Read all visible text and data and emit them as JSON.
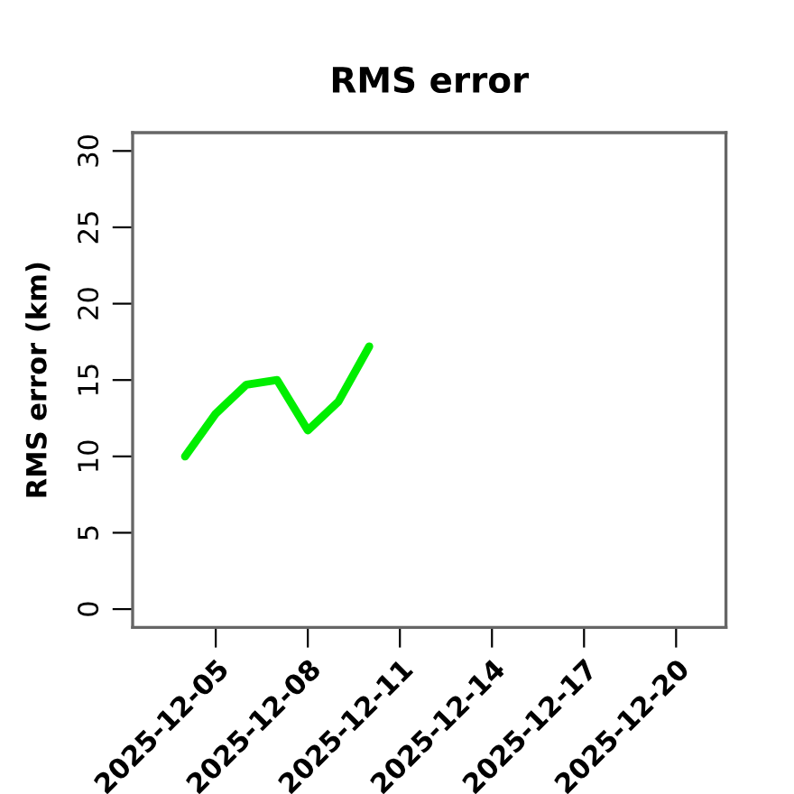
{
  "chart_data": {
    "type": "line",
    "title": "RMS error",
    "ylabel": "RMS error (km)",
    "x": [
      "2025-12-04",
      "2025-12-05",
      "2025-12-06",
      "2025-12-07",
      "2025-12-08",
      "2025-12-09",
      "2025-12-10"
    ],
    "series": [
      {
        "color": "#00ee00",
        "values": [
          10.0,
          12.8,
          14.7,
          15.0,
          11.7,
          13.6,
          17.2
        ]
      }
    ],
    "xlim": [
      "2025-12-02T07:00",
      "2025-12-21T15:00"
    ],
    "ylim": [
      -1.2,
      31.2
    ],
    "xticks": [
      "2025-12-05",
      "2025-12-08",
      "2025-12-11",
      "2025-12-14",
      "2025-12-17",
      "2025-12-20"
    ],
    "yticks": [
      0,
      5,
      10,
      15,
      20,
      25,
      30
    ],
    "grid": false,
    "marker": "none",
    "line_style": "solid"
  }
}
